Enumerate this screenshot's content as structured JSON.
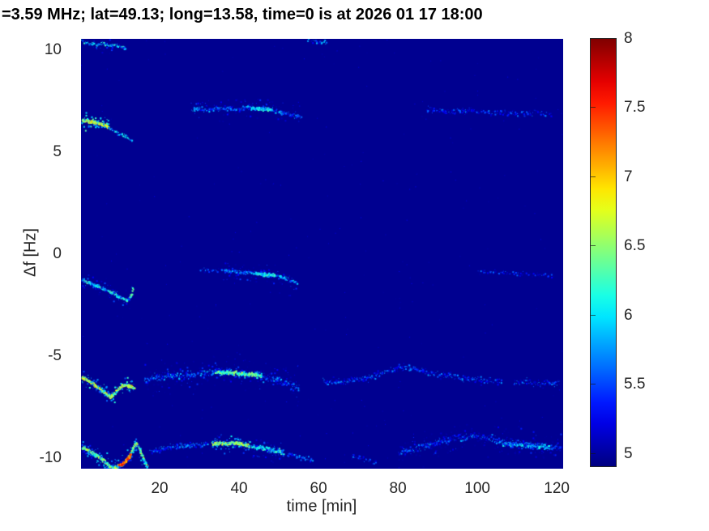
{
  "chart_data": {
    "type": "heatmap",
    "subtype": "doppler-spectrogram",
    "title": "=3.59 MHz;  lat=49.13; long=13.58, time=0 is at 2026 01 17 18:00",
    "xlabel": "time [min]",
    "ylabel": "Δf [Hz]",
    "xlim": [
      0.2,
      121.6
    ],
    "ylim": [
      -10.55,
      10.55
    ],
    "grid": false,
    "xticks": [
      {
        "v": 20,
        "label": "20"
      },
      {
        "v": 40,
        "label": "40"
      },
      {
        "v": 60,
        "label": "60"
      },
      {
        "v": 80,
        "label": "80"
      },
      {
        "v": 100,
        "label": "100"
      },
      {
        "v": 120,
        "label": "120"
      }
    ],
    "yticks": [
      {
        "v": 10,
        "label": "10"
      },
      {
        "v": 5,
        "label": "5"
      },
      {
        "v": 0,
        "label": "0"
      },
      {
        "v": -5,
        "label": "-5"
      },
      {
        "v": -10,
        "label": "-10"
      }
    ],
    "colorbar": {
      "min": 4.9,
      "max": 8,
      "colormap": "jet",
      "position": "right",
      "ticks": [
        {
          "v": 8,
          "label": "8"
        },
        {
          "v": 7.5,
          "label": "7.5"
        },
        {
          "v": 7,
          "label": "7"
        },
        {
          "v": 6.5,
          "label": "6.5"
        },
        {
          "v": 6,
          "label": "6"
        },
        {
          "v": 5.5,
          "label": "5.5"
        },
        {
          "v": 5,
          "label": "5"
        }
      ]
    },
    "background_value": 4.95,
    "noise": {
      "count": 260,
      "vmin": 5.0,
      "vmax": 5.3
    },
    "traces": [
      {
        "name": "edge-top-left",
        "pts": [
          [
            0.3,
            10.45
          ],
          [
            2,
            10.35
          ],
          [
            4,
            10.3
          ],
          [
            5.5,
            10.35
          ],
          [
            7,
            10.25
          ],
          [
            8.5,
            10.3
          ],
          [
            10,
            10.2
          ],
          [
            11.2,
            10.1
          ]
        ],
        "v": 5.9,
        "d": 8,
        "s": 0.06,
        "halo": true
      },
      {
        "name": "top-mid-speck",
        "pts": [
          [
            57,
            10.5
          ],
          [
            59,
            10.45
          ],
          [
            62,
            10.4
          ]
        ],
        "v": 5.5,
        "d": 4,
        "s": 0.08
      },
      {
        "name": "left-6.5-bright",
        "pts": [
          [
            0.3,
            6.6
          ],
          [
            1.5,
            6.55
          ],
          [
            3,
            6.5
          ],
          [
            4.5,
            6.45
          ],
          [
            6,
            6.35
          ],
          [
            7,
            6.25
          ]
        ],
        "v": 6.7,
        "d": 16,
        "s": 0.06,
        "halo": true
      },
      {
        "name": "left-6.5-tail",
        "pts": [
          [
            7,
            6.2
          ],
          [
            8.5,
            6.05
          ],
          [
            10,
            5.9
          ],
          [
            11.5,
            5.75
          ],
          [
            13,
            5.58
          ]
        ],
        "v": 5.8,
        "d": 7,
        "s": 0.08
      },
      {
        "name": "mid-7",
        "pts": [
          [
            28,
            7.15
          ],
          [
            32,
            7.1
          ],
          [
            36,
            7.15
          ],
          [
            40,
            7.15
          ],
          [
            43,
            7.2
          ],
          [
            46,
            7.15
          ],
          [
            49,
            7.05
          ],
          [
            51,
            6.95
          ],
          [
            53,
            6.85
          ],
          [
            55.5,
            6.72
          ]
        ],
        "v": 5.6,
        "d": 8,
        "s": 0.1,
        "halo": true
      },
      {
        "name": "mid-7-bright",
        "pts": [
          [
            43,
            7.2
          ],
          [
            45.5,
            7.15
          ],
          [
            48,
            7.1
          ]
        ],
        "v": 6.0,
        "d": 14,
        "s": 0.07
      },
      {
        "name": "right-7",
        "pts": [
          [
            87,
            7.1
          ],
          [
            91,
            7.05
          ],
          [
            95,
            7.0
          ],
          [
            99,
            7.05
          ],
          [
            103,
            6.95
          ],
          [
            107,
            7.0
          ],
          [
            111,
            6.9
          ],
          [
            115,
            6.95
          ],
          [
            118.5,
            6.88
          ]
        ],
        "v": 5.35,
        "d": 6,
        "s": 0.12
      },
      {
        "name": "left-minus1",
        "pts": [
          [
            0.3,
            -1.25
          ],
          [
            2,
            -1.4
          ],
          [
            4,
            -1.55
          ],
          [
            6,
            -1.7
          ],
          [
            8,
            -1.9
          ],
          [
            10,
            -2.1
          ],
          [
            11.5,
            -2.25
          ],
          [
            12.3,
            -2.2
          ]
        ],
        "v": 6.0,
        "d": 12,
        "s": 0.06,
        "halo": true
      },
      {
        "name": "left-minus1-hook",
        "pts": [
          [
            12.3,
            -2.15
          ],
          [
            12.9,
            -1.9
          ],
          [
            13.1,
            -1.65
          ],
          [
            12.9,
            -1.45
          ]
        ],
        "v": 6.05,
        "d": 16,
        "s": 0.05
      },
      {
        "name": "mid-minus1-lead",
        "pts": [
          [
            30,
            -0.75
          ],
          [
            33,
            -0.8
          ],
          [
            36,
            -0.82
          ]
        ],
        "v": 5.35,
        "d": 4,
        "s": 0.1
      },
      {
        "name": "mid-minus1",
        "pts": [
          [
            36,
            -0.8
          ],
          [
            39,
            -0.85
          ],
          [
            42,
            -0.9
          ],
          [
            45,
            -0.95
          ],
          [
            47,
            -1.0
          ],
          [
            49,
            -1.05
          ],
          [
            51,
            -1.15
          ],
          [
            53,
            -1.3
          ],
          [
            54.5,
            -1.42
          ]
        ],
        "v": 5.7,
        "d": 9,
        "s": 0.08,
        "halo": true
      },
      {
        "name": "mid-minus1-bright",
        "pts": [
          [
            44,
            -0.95
          ],
          [
            46.5,
            -1.0
          ],
          [
            49,
            -1.05
          ]
        ],
        "v": 6.0,
        "d": 14,
        "s": 0.06
      },
      {
        "name": "right-minus1",
        "pts": [
          [
            100,
            -0.85
          ],
          [
            105,
            -0.9
          ],
          [
            110,
            -0.95
          ],
          [
            115,
            -1.0
          ],
          [
            119,
            -1.05
          ]
        ],
        "v": 5.25,
        "d": 4,
        "s": 0.1
      },
      {
        "name": "left-minus6",
        "pts": [
          [
            0.3,
            -6.05
          ],
          [
            1.5,
            -6.15
          ],
          [
            3,
            -6.35
          ],
          [
            4.5,
            -6.55
          ],
          [
            6,
            -6.8
          ],
          [
            7.5,
            -7.0
          ],
          [
            8.5,
            -6.85
          ],
          [
            9.5,
            -6.6
          ],
          [
            10.5,
            -6.45
          ],
          [
            11.5,
            -6.4
          ],
          [
            12.5,
            -6.5
          ],
          [
            13.5,
            -6.55
          ]
        ],
        "v": 6.6,
        "d": 16,
        "s": 0.06,
        "halo": true
      },
      {
        "name": "mid-minus6-band",
        "pts": [
          [
            16,
            -6.25
          ],
          [
            19,
            -6.05
          ],
          [
            22,
            -5.95
          ],
          [
            25,
            -5.95
          ],
          [
            28,
            -5.9
          ],
          [
            31,
            -5.85
          ],
          [
            34,
            -5.8
          ],
          [
            37,
            -5.8
          ],
          [
            40,
            -5.85
          ],
          [
            43,
            -5.9
          ],
          [
            45,
            -5.95
          ],
          [
            47,
            -6.05
          ],
          [
            49,
            -6.15
          ],
          [
            51,
            -6.25
          ],
          [
            53,
            -6.35
          ],
          [
            55,
            -6.5
          ]
        ],
        "v": 5.5,
        "d": 10,
        "s": 0.18,
        "halo": true
      },
      {
        "name": "mid-minus6-bright",
        "pts": [
          [
            34,
            -5.8
          ],
          [
            37,
            -5.8
          ],
          [
            40,
            -5.85
          ],
          [
            43,
            -5.9
          ],
          [
            45.5,
            -5.97
          ]
        ],
        "v": 6.3,
        "d": 13,
        "s": 0.08
      },
      {
        "name": "right-minus6-band",
        "pts": [
          [
            61,
            -6.3
          ],
          [
            64,
            -6.25
          ],
          [
            67,
            -6.2
          ],
          [
            70,
            -6.15
          ],
          [
            73,
            -6.05
          ],
          [
            76,
            -5.85
          ],
          [
            79,
            -5.65
          ],
          [
            82,
            -5.55
          ],
          [
            85,
            -5.65
          ],
          [
            88,
            -5.85
          ],
          [
            91,
            -5.95
          ],
          [
            94,
            -6.0
          ],
          [
            97,
            -6.1
          ],
          [
            100,
            -6.15
          ],
          [
            103,
            -6.2
          ],
          [
            106,
            -6.25
          ]
        ],
        "v": 5.4,
        "d": 8,
        "s": 0.15
      },
      {
        "name": "far-right-minus6",
        "pts": [
          [
            109,
            -6.3
          ],
          [
            112,
            -6.25
          ],
          [
            115,
            -6.35
          ],
          [
            118,
            -6.3
          ],
          [
            120.5,
            -6.35
          ]
        ],
        "v": 5.4,
        "d": 7,
        "s": 0.15
      },
      {
        "name": "left-minus9.5",
        "pts": [
          [
            0.3,
            -9.5
          ],
          [
            1.5,
            -9.6
          ],
          [
            3,
            -9.75
          ],
          [
            4.5,
            -9.95
          ],
          [
            6,
            -10.15
          ],
          [
            7,
            -10.35
          ],
          [
            8,
            -10.5
          ],
          [
            9,
            -10.45
          ],
          [
            10,
            -10.35
          ],
          [
            11,
            -10.2
          ],
          [
            12,
            -10.0
          ],
          [
            13,
            -9.55
          ],
          [
            13.8,
            -9.25
          ],
          [
            14.5,
            -9.45
          ],
          [
            15.3,
            -9.8
          ],
          [
            16,
            -10.15
          ],
          [
            16.8,
            -10.5
          ]
        ],
        "v": 6.4,
        "d": 16,
        "s": 0.07,
        "halo": true
      },
      {
        "name": "left-minus9.5-hotspots",
        "pts": [
          [
            9.6,
            -10.35
          ],
          [
            10.4,
            -10.3
          ],
          [
            11.2,
            -10.15
          ],
          [
            12.0,
            -10.0
          ],
          [
            12.6,
            -9.8
          ]
        ],
        "v": 7.3,
        "d": 18,
        "s": 0.05
      },
      {
        "name": "mid-minus9.5-faint",
        "pts": [
          [
            17.5,
            -9.7
          ],
          [
            20,
            -9.55
          ],
          [
            23,
            -9.45
          ],
          [
            26,
            -9.4
          ],
          [
            29,
            -9.35
          ],
          [
            32,
            -9.3
          ]
        ],
        "v": 5.5,
        "d": 9,
        "s": 0.12
      },
      {
        "name": "mid-minus9.5-bright",
        "pts": [
          [
            33,
            -9.3
          ],
          [
            35,
            -9.25
          ],
          [
            37,
            -9.3
          ],
          [
            39,
            -9.25
          ],
          [
            41,
            -9.35
          ],
          [
            42.5,
            -9.4
          ]
        ],
        "v": 6.5,
        "d": 15,
        "s": 0.07,
        "halo": true
      },
      {
        "name": "mid-minus9.5-cyan",
        "pts": [
          [
            43,
            -9.45
          ],
          [
            45,
            -9.5
          ],
          [
            47,
            -9.55
          ],
          [
            49,
            -9.65
          ],
          [
            51,
            -9.72
          ]
        ],
        "v": 6.0,
        "d": 15,
        "s": 0.1,
        "halo": true
      },
      {
        "name": "mid-minus9.5-tail",
        "pts": [
          [
            52,
            -9.78
          ],
          [
            54,
            -9.9
          ],
          [
            56,
            -10.0
          ],
          [
            58.5,
            -10.12
          ]
        ],
        "v": 5.5,
        "d": 8,
        "s": 0.1
      },
      {
        "name": "dip-minus10",
        "pts": [
          [
            68,
            -9.9
          ],
          [
            70,
            -10.0
          ],
          [
            72,
            -10.1
          ],
          [
            74.5,
            -10.25
          ]
        ],
        "v": 5.3,
        "d": 5,
        "s": 0.1
      },
      {
        "name": "right-minus9.5",
        "pts": [
          [
            80,
            -9.75
          ],
          [
            83,
            -9.6
          ],
          [
            86,
            -9.45
          ],
          [
            89,
            -9.3
          ],
          [
            92,
            -9.15
          ],
          [
            95,
            -9.0
          ],
          [
            98,
            -8.95
          ],
          [
            101,
            -9.0
          ],
          [
            104,
            -9.1
          ],
          [
            107,
            -9.2
          ],
          [
            110,
            -9.3
          ],
          [
            113,
            -9.35
          ],
          [
            116,
            -9.4
          ],
          [
            119,
            -9.45
          ],
          [
            121,
            -9.45
          ]
        ],
        "v": 5.45,
        "d": 9,
        "s": 0.15,
        "halo": true
      },
      {
        "name": "right-minus9.5-bright",
        "pts": [
          [
            106,
            -9.3
          ],
          [
            109,
            -9.35
          ],
          [
            112,
            -9.38
          ],
          [
            115,
            -9.42
          ],
          [
            118,
            -9.42
          ]
        ],
        "v": 5.8,
        "d": 10,
        "s": 0.1
      }
    ]
  }
}
